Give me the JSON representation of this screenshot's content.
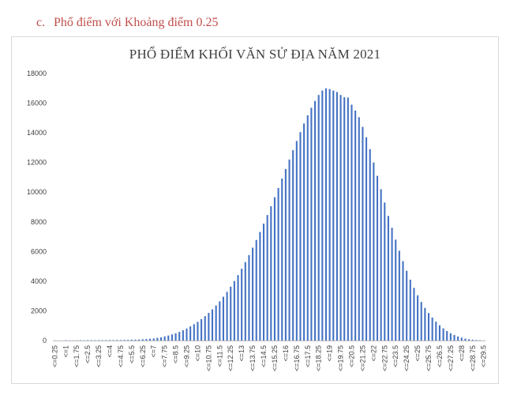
{
  "heading": {
    "marker": "c.",
    "text": "Phổ điểm với Khoảng điểm 0.25"
  },
  "colors": {
    "heading": "#c0504d",
    "bar": "#4472c4",
    "frame": "#d9d9d9",
    "axis": "#bfbfbf"
  },
  "chart_data": {
    "type": "bar",
    "title": "PHỔ ĐIỂM KHỐI VĂN SỬ ĐỊA NĂM 2021",
    "xlabel": "",
    "ylabel": "",
    "ylim": [
      0,
      18000
    ],
    "yticks": [
      0,
      2000,
      4000,
      6000,
      8000,
      10000,
      12000,
      14000,
      16000,
      18000
    ],
    "grid": false,
    "legend": "none",
    "categories": [
      "<=0.25",
      "<=0.5",
      "<=0.75",
      "<=1",
      "<=1.25",
      "<=1.5",
      "<=1.75",
      "<=2",
      "<=2.25",
      "<=2.5",
      "<=2.75",
      "<=3",
      "<=3.25",
      "<=3.5",
      "<=3.75",
      "<=4",
      "<=4.25",
      "<=4.5",
      "<=4.75",
      "<=5",
      "<=5.25",
      "<=5.5",
      "<=5.75",
      "<=6",
      "<=6.25",
      "<=6.5",
      "<=6.75",
      "<=7",
      "<=7.25",
      "<=7.5",
      "<=7.75",
      "<=8",
      "<=8.25",
      "<=8.5",
      "<=8.75",
      "<=9",
      "<=9.25",
      "<=9.5",
      "<=9.75",
      "<=10",
      "<=10.25",
      "<=10.5",
      "<=10.75",
      "<=11",
      "<=11.25",
      "<=11.5",
      "<=11.75",
      "<=12",
      "<=12.25",
      "<=12.5",
      "<=12.75",
      "<=13",
      "<=13.25",
      "<=13.5",
      "<=13.75",
      "<=14",
      "<=14.25",
      "<=14.5",
      "<=14.75",
      "<=15",
      "<=15.25",
      "<=15.5",
      "<=15.75",
      "<=16",
      "<=16.25",
      "<=16.5",
      "<=16.75",
      "<=17",
      "<=17.25",
      "<=17.5",
      "<=17.75",
      "<=18",
      "<=18.25",
      "<=18.5",
      "<=18.75",
      "<=19",
      "<=19.25",
      "<=19.5",
      "<=19.75",
      "<=20",
      "<=20.25",
      "<=20.5",
      "<=20.75",
      "<=21",
      "<=21.25",
      "<=21.5",
      "<=21.75",
      "<=22",
      "<=22.25",
      "<=22.5",
      "<=22.75",
      "<=23",
      "<=23.25",
      "<=23.5",
      "<=23.75",
      "<=24",
      "<=24.25",
      "<=24.5",
      "<=24.75",
      "<=25",
      "<=25.25",
      "<=25.5",
      "<=25.75",
      "<=26",
      "<=26.25",
      "<=26.5",
      "<=26.75",
      "<=27",
      "<=27.25",
      "<=27.5",
      "<=27.75",
      "<=28",
      "<=28.25",
      "<=28.5",
      "<=28.75",
      "<=29",
      "<=29.25",
      "<=29.5"
    ],
    "values": [
      10,
      2,
      5,
      20,
      12,
      10,
      15,
      20,
      18,
      25,
      20,
      22,
      25,
      22,
      25,
      30,
      30,
      35,
      35,
      40,
      45,
      55,
      60,
      70,
      85,
      100,
      120,
      140,
      180,
      220,
      280,
      340,
      410,
      490,
      580,
      690,
      810,
      950,
      1100,
      1260,
      1440,
      1640,
      1860,
      2100,
      2360,
      2640,
      2950,
      3280,
      3630,
      4010,
      4410,
      4840,
      5290,
      5760,
      6260,
      6780,
      7320,
      7880,
      8460,
      9050,
      9660,
      10280,
      10920,
      11560,
      12200,
      12830,
      13450,
      14050,
      14630,
      15180,
      15690,
      16150,
      16550,
      16850,
      17000,
      16950,
      16850,
      16750,
      16550,
      16400,
      16380,
      15900,
      15500,
      15050,
      14400,
      13700,
      12900,
      12000,
      11100,
      10200,
      9300,
      8400,
      7600,
      6800,
      6050,
      5350,
      4700,
      4100,
      3550,
      3050,
      2600,
      2200,
      1850,
      1550,
      1270,
      1030,
      820,
      640,
      490,
      370,
      270,
      190,
      130,
      85,
      55,
      35,
      20,
      10
    ],
    "xtick_labels_shown": [
      "<=0.25",
      "<=1",
      "<=1.75",
      "<=2.5",
      "<=3.25",
      "<=4",
      "<=4.75",
      "<=5.5",
      "<=6.25",
      "<=7",
      "<=7.75",
      "<=8.5",
      "<=9.25",
      "<=10",
      "<=10.75",
      "<=11.5",
      "<=12.25",
      "<=13",
      "<=13.75",
      "<=14.5",
      "<=15.25",
      "<=16",
      "<=16.75",
      "<=17.5",
      "<=18.25",
      "<=19",
      "<=19.75",
      "<=20.5",
      "<=21.25",
      "<=22",
      "<=22.75",
      "<=23.5",
      "<=24.25",
      "<=25",
      "<=25.75",
      "<=26.5",
      "<=27.25",
      "<=28",
      "<=28.75",
      "<=29.5"
    ]
  }
}
